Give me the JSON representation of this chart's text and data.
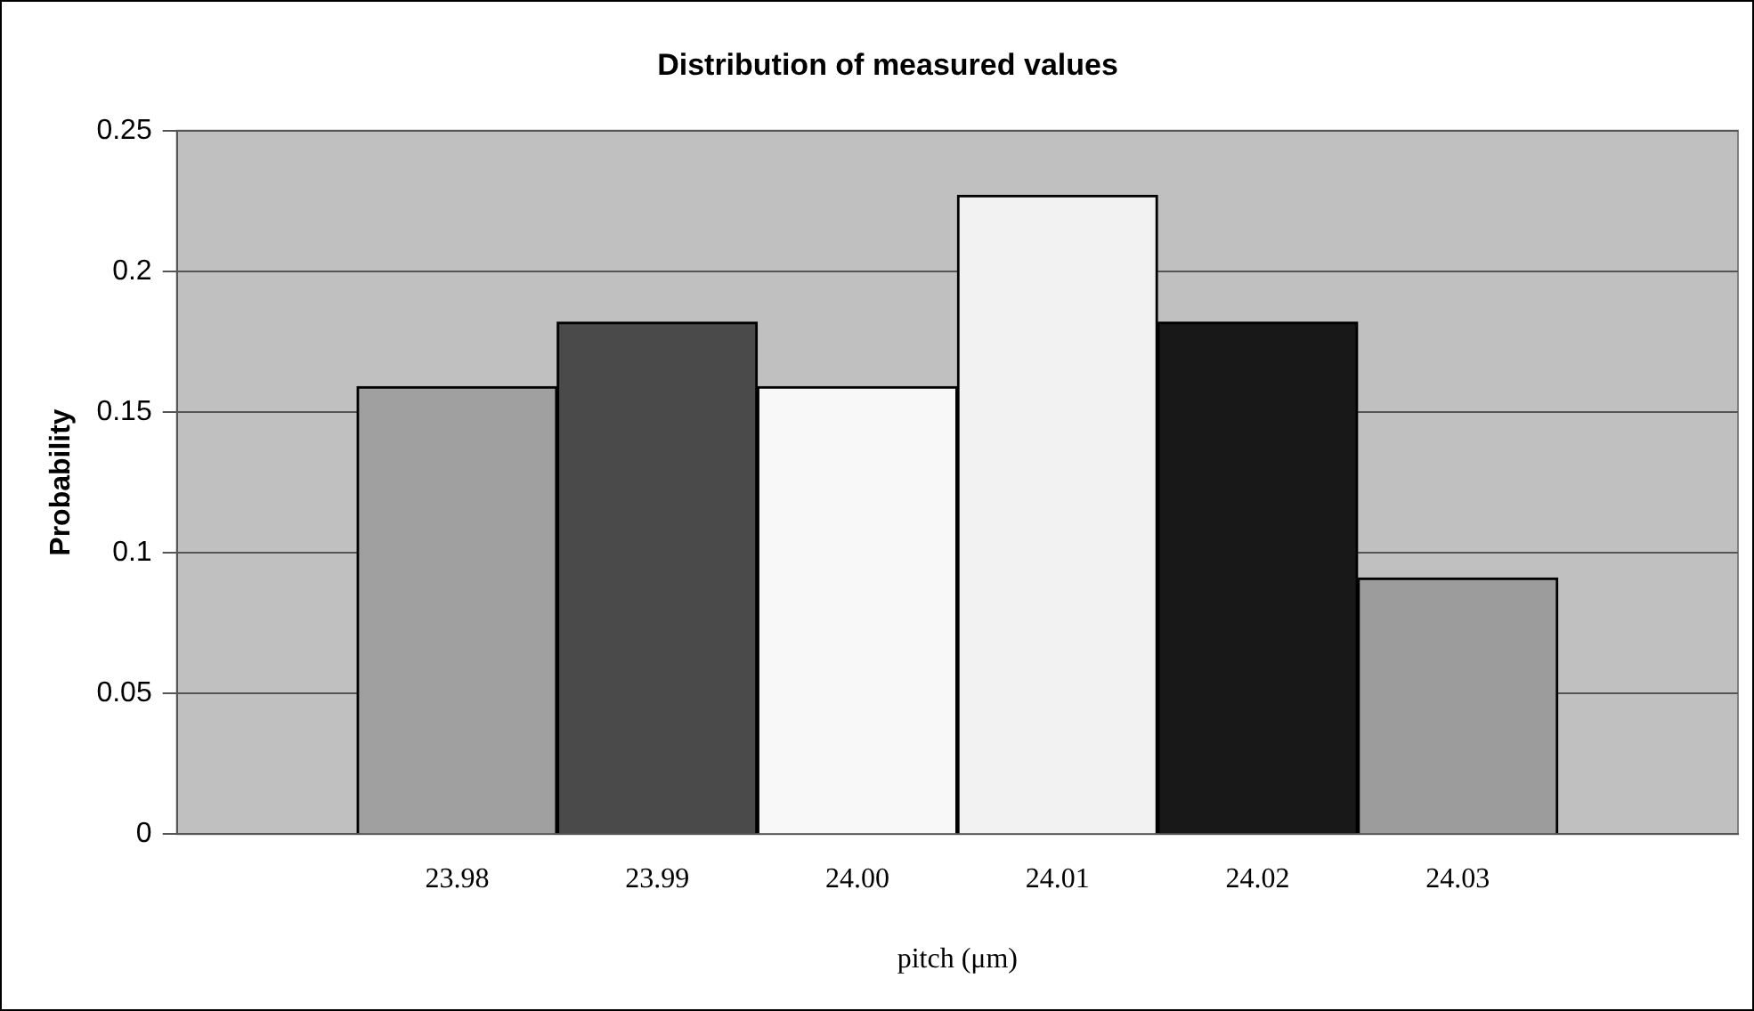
{
  "chart_data": {
    "type": "bar",
    "title": "Distribution of measured values",
    "xlabel": "pitch (μm)",
    "ylabel": "Probability",
    "categories": [
      "23.98",
      "23.99",
      "24.00",
      "24.01",
      "24.02",
      "24.03"
    ],
    "values": [
      0.159,
      0.182,
      0.159,
      0.227,
      0.182,
      0.091
    ],
    "colors": [
      "#a0a0a0",
      "#4a4a4a",
      "#f8f8f8",
      "#f2f2f2",
      "#181818",
      "#9c9c9c"
    ],
    "ylim": [
      0,
      0.25
    ],
    "yticks": [
      0,
      0.05,
      0.1,
      0.15,
      0.2,
      0.25
    ],
    "grid": "y",
    "legend": false
  }
}
